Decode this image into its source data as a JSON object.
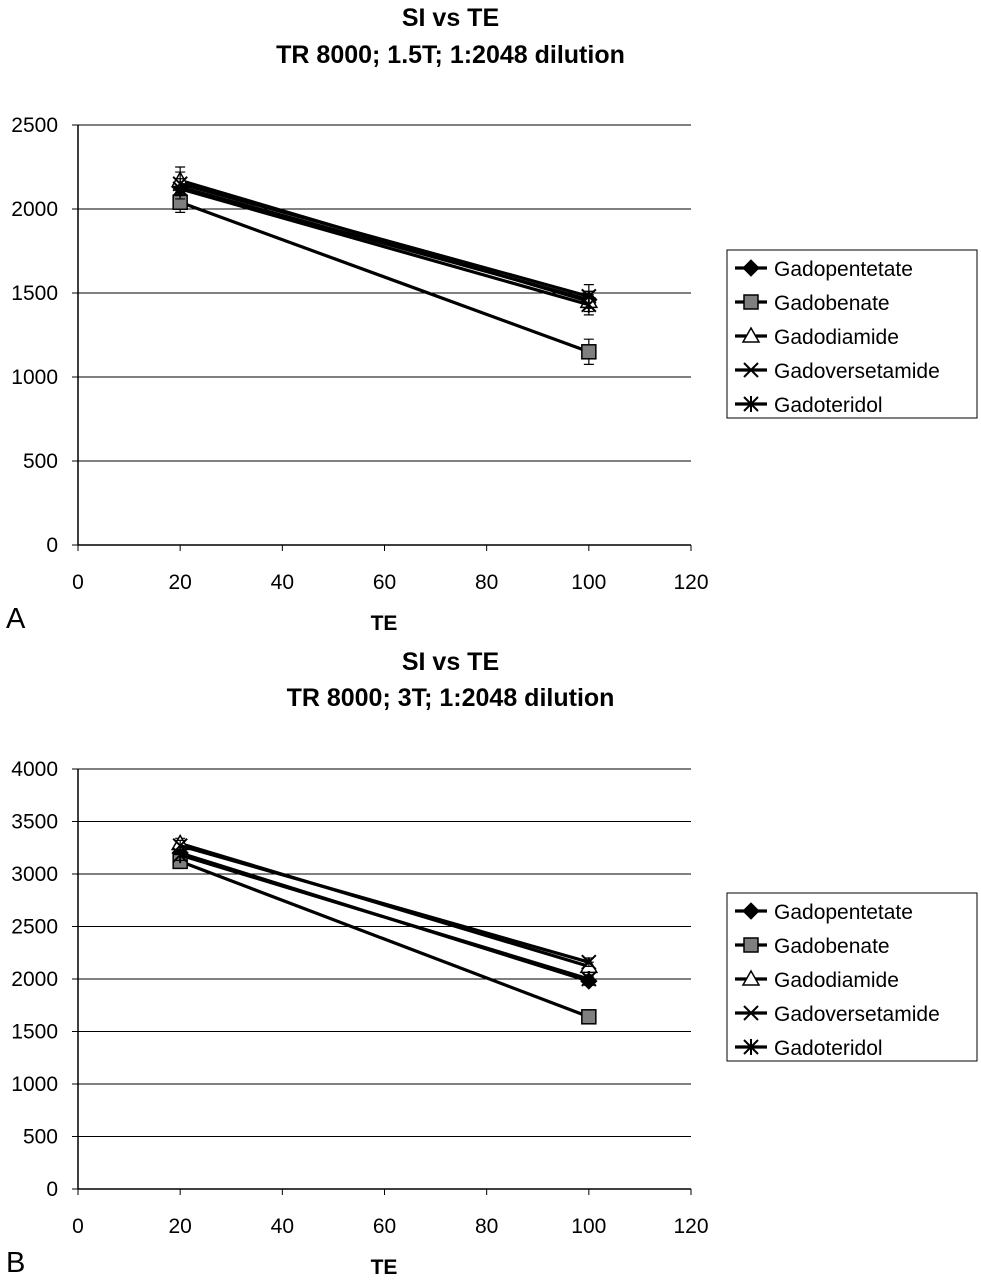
{
  "chart_data": [
    {
      "type": "line",
      "panel_label": "A",
      "title": [
        "SI vs TE",
        "TR 8000; 1.5T; 1:2048 dilution"
      ],
      "xlabel": "TE",
      "ylabel": "",
      "xlim": [
        0,
        120
      ],
      "ylim": [
        0,
        2500
      ],
      "xticks": [
        0,
        20,
        40,
        60,
        80,
        100,
        120
      ],
      "yticks": [
        0,
        500,
        1000,
        1500,
        2000,
        2500
      ],
      "grid": "horizontal",
      "legend": "right",
      "series": [
        {
          "name": "Gadopentetate",
          "marker": "diamond",
          "x": [
            20,
            100
          ],
          "y": [
            2130,
            1460
          ],
          "err": [
            50,
            50
          ]
        },
        {
          "name": "Gadobenate",
          "marker": "square",
          "x": [
            20,
            100
          ],
          "y": [
            2040,
            1150
          ],
          "err": [
            60,
            75
          ]
        },
        {
          "name": "Gadodiamide",
          "marker": "triangle",
          "x": [
            20,
            100
          ],
          "y": [
            2170,
            1450
          ],
          "err": [
            80,
            60
          ]
        },
        {
          "name": "Gadoversetamide",
          "marker": "x",
          "x": [
            20,
            100
          ],
          "y": [
            2150,
            1480
          ],
          "err": [
            70,
            70
          ]
        },
        {
          "name": "Gadoteridol",
          "marker": "star",
          "x": [
            20,
            100
          ],
          "y": [
            2120,
            1430
          ],
          "err": [
            60,
            60
          ]
        }
      ]
    },
    {
      "type": "line",
      "panel_label": "B",
      "title": [
        "SI vs TE",
        "TR 8000; 3T; 1:2048 dilution"
      ],
      "xlabel": "TE",
      "ylabel": "",
      "xlim": [
        0,
        120
      ],
      "ylim": [
        0,
        4000
      ],
      "xticks": [
        0,
        20,
        40,
        60,
        80,
        100,
        120
      ],
      "yticks": [
        0,
        500,
        1000,
        1500,
        2000,
        2500,
        3000,
        3500,
        4000
      ],
      "grid": "horizontal",
      "legend": "right",
      "series": [
        {
          "name": "Gadopentetate",
          "marker": "diamond",
          "x": [
            20,
            100
          ],
          "y": [
            3200,
            1980
          ],
          "err": [
            40,
            40
          ]
        },
        {
          "name": "Gadobenate",
          "marker": "square",
          "x": [
            20,
            100
          ],
          "y": [
            3120,
            1640
          ],
          "err": [
            40,
            30
          ]
        },
        {
          "name": "Gadodiamide",
          "marker": "triangle",
          "x": [
            20,
            100
          ],
          "y": [
            3290,
            2120
          ],
          "err": [
            50,
            40
          ]
        },
        {
          "name": "Gadoversetamide",
          "marker": "x",
          "x": [
            20,
            100
          ],
          "y": [
            3270,
            2160
          ],
          "err": [
            50,
            40
          ]
        },
        {
          "name": "Gadoteridol",
          "marker": "star",
          "x": [
            20,
            100
          ],
          "y": [
            3180,
            2000
          ],
          "err": [
            50,
            40
          ]
        }
      ]
    }
  ]
}
